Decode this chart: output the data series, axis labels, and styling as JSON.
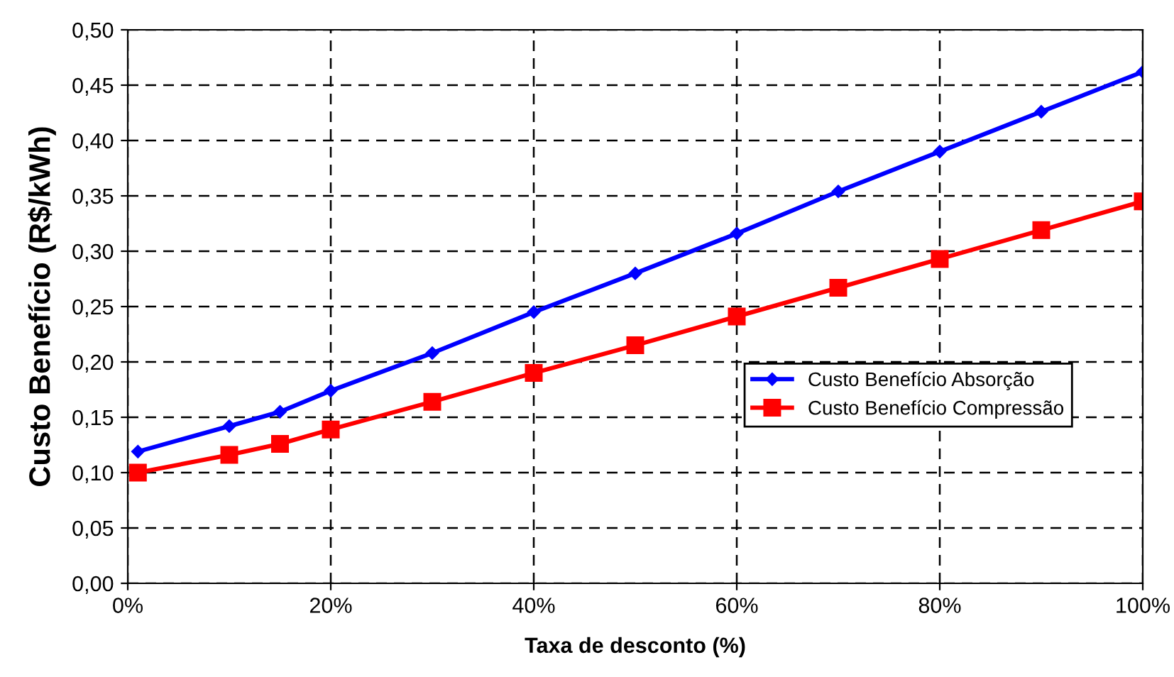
{
  "chart_data": {
    "type": "line",
    "xlabel": "Taxa de desconto (%)",
    "ylabel": "Custo Benefício (R$/kWh)",
    "x": [
      1,
      10,
      15,
      20,
      30,
      40,
      50,
      60,
      70,
      80,
      90,
      100
    ],
    "series": [
      {
        "name": "Custo Benefício Absorção",
        "color": "#0000ff",
        "marker": "diamond",
        "values": [
          0.119,
          0.142,
          0.155,
          0.174,
          0.208,
          0.245,
          0.28,
          0.316,
          0.354,
          0.39,
          0.426,
          0.462
        ]
      },
      {
        "name": "Custo Benefício Compressão",
        "color": "#ff0000",
        "marker": "square",
        "values": [
          0.1,
          0.116,
          0.126,
          0.139,
          0.164,
          0.19,
          0.215,
          0.241,
          0.267,
          0.293,
          0.319,
          0.345
        ]
      }
    ],
    "xlim": [
      0,
      100
    ],
    "xticks": [
      {
        "value": 0,
        "label": "0%"
      },
      {
        "value": 20,
        "label": "20%"
      },
      {
        "value": 40,
        "label": "40%"
      },
      {
        "value": 60,
        "label": "60%"
      },
      {
        "value": 80,
        "label": "80%"
      },
      {
        "value": 100,
        "label": "100%"
      }
    ],
    "ylim": [
      0,
      0.5
    ],
    "yticks": [
      {
        "value": 0,
        "label": "0,00"
      },
      {
        "value": 0.05,
        "label": "0,05"
      },
      {
        "value": 0.1,
        "label": "0,10"
      },
      {
        "value": 0.15,
        "label": "0,15"
      },
      {
        "value": 0.2,
        "label": "0,20"
      },
      {
        "value": 0.25,
        "label": "0,25"
      },
      {
        "value": 0.3,
        "label": "0,30"
      },
      {
        "value": 0.35,
        "label": "0,35"
      },
      {
        "value": 0.4,
        "label": "0,40"
      },
      {
        "value": 0.45,
        "label": "0,45"
      },
      {
        "value": 0.5,
        "label": "0,50"
      }
    ],
    "grid": true,
    "line_style": "solid",
    "legend": "center right"
  }
}
